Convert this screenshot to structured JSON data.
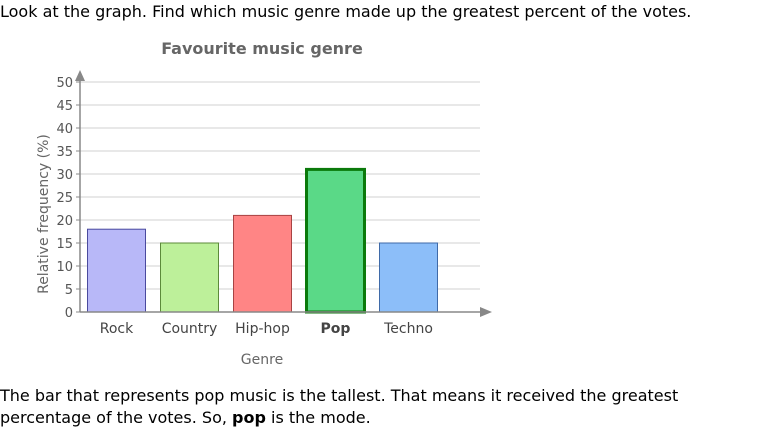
{
  "question": "Look at the graph. Find which music genre made up the greatest percent of the votes.",
  "explanation": {
    "before": "The bar that represents pop music is the tallest. That means it received the greatest percentage of the votes. So, ",
    "bold": "pop",
    "after": " is the mode."
  },
  "chart_data": {
    "type": "bar",
    "title": "Favourite music genre",
    "xlabel": "Genre",
    "ylabel": "Relative frequency (%)",
    "categories": [
      "Rock",
      "Country",
      "Hip-hop",
      "Pop",
      "Techno"
    ],
    "values": [
      18,
      15,
      21,
      31,
      15
    ],
    "ylim": [
      0,
      50
    ],
    "yticks": [
      0,
      5,
      10,
      15,
      20,
      25,
      30,
      35,
      40,
      45,
      50
    ],
    "grid": true,
    "highlight_index": 3,
    "colors": {
      "bar_fills": [
        "#b8b8f8",
        "#bdf09a",
        "#ff8585",
        "#5ad987",
        "#8cbef9"
      ],
      "bar_strokes": [
        "#4a4a9e",
        "#5c8a3a",
        "#a84343",
        "#0d7a0d",
        "#3f6aa8"
      ],
      "highlight_stroke": "#0b7a0b",
      "grid": "#d0d0d0",
      "axis": "#888888",
      "title": "#666666",
      "label": "#666666"
    }
  }
}
